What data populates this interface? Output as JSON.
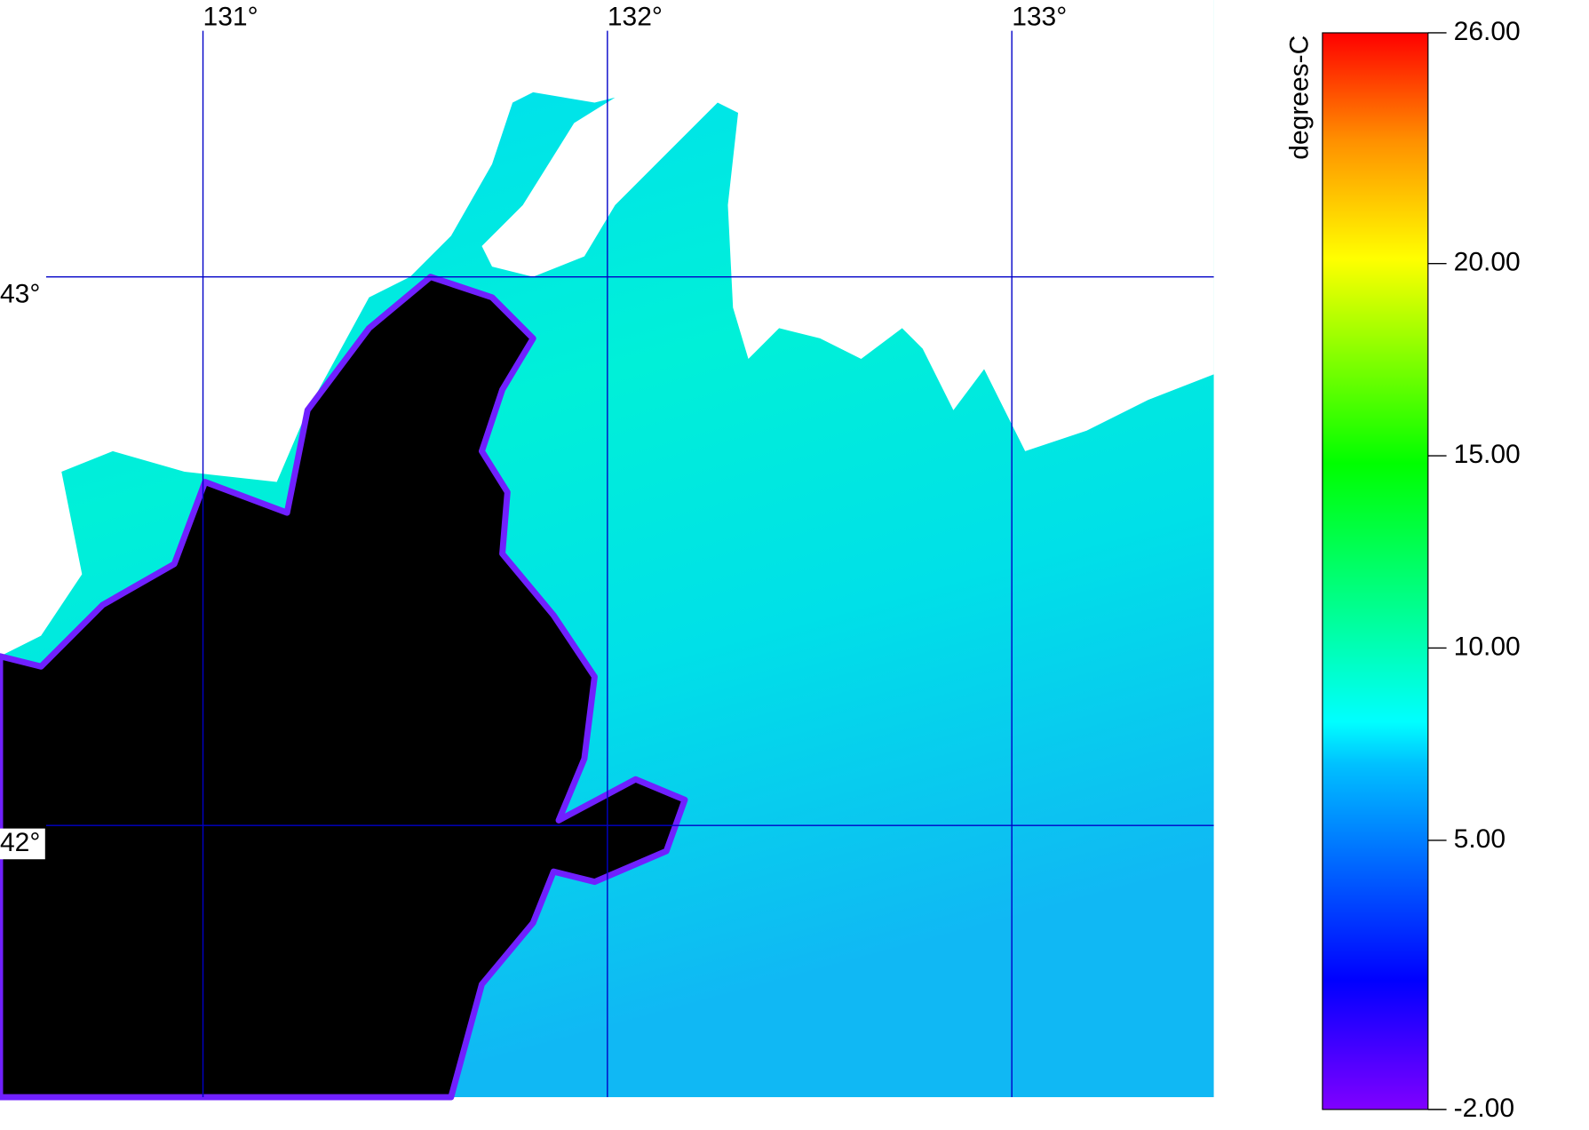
{
  "map": {
    "longitudes": [
      {
        "value": 131,
        "label": "131°"
      },
      {
        "value": 132,
        "label": "132°"
      },
      {
        "value": 133,
        "label": "133°"
      }
    ],
    "latitudes": [
      {
        "value": 43,
        "label": "43°"
      },
      {
        "value": 42,
        "label": "42°"
      }
    ]
  },
  "colorbar": {
    "label": "degrees-C",
    "range": [
      -2,
      26
    ],
    "ticks": [
      {
        "value": 26,
        "label": "26.00"
      },
      {
        "value": 20,
        "label": "20.00"
      },
      {
        "value": 15,
        "label": "15.00"
      },
      {
        "value": 10,
        "label": "10.00"
      },
      {
        "value": 5,
        "label": "5.00"
      },
      {
        "value": -2,
        "label": "-2.00"
      }
    ]
  }
}
